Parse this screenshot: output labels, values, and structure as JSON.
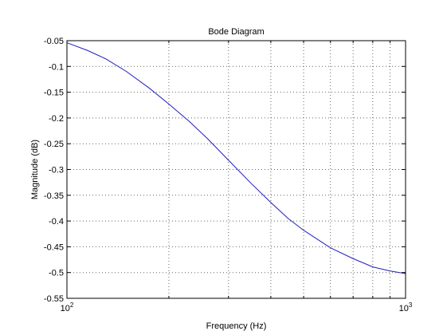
{
  "chart_data": {
    "type": "line",
    "title": "Bode Diagram",
    "xlabel": "Frequency  (Hz)",
    "ylabel": "Magnitude (dB)",
    "xscale": "log",
    "xlim": [
      100,
      1000
    ],
    "ylim": [
      -0.55,
      -0.05
    ],
    "grid": true,
    "x_tick_labels": [
      {
        "value": 100,
        "base": "10",
        "exp": "2"
      },
      {
        "value": 1000,
        "base": "10",
        "exp": "3"
      }
    ],
    "y_tick_labels": [
      {
        "value": -0.05,
        "label": "-0.05"
      },
      {
        "value": -0.1,
        "label": "-0.1"
      },
      {
        "value": -0.15,
        "label": "-0.15"
      },
      {
        "value": -0.2,
        "label": "-0.2"
      },
      {
        "value": -0.25,
        "label": "-0.25"
      },
      {
        "value": -0.3,
        "label": "-0.3"
      },
      {
        "value": -0.35,
        "label": "-0.35"
      },
      {
        "value": -0.4,
        "label": "-0.4"
      },
      {
        "value": -0.45,
        "label": "-0.45"
      },
      {
        "value": -0.5,
        "label": "-0.5"
      },
      {
        "value": -0.55,
        "label": "-0.55"
      }
    ],
    "series": [
      {
        "color": "#1f1fbf",
        "x": [
          100,
          115,
          130,
          150,
          175,
          200,
          230,
          260,
          300,
          350,
          400,
          450,
          500,
          600,
          700,
          800,
          900,
          1000
        ],
        "y": [
          -0.054,
          -0.069,
          -0.085,
          -0.11,
          -0.142,
          -0.173,
          -0.207,
          -0.24,
          -0.282,
          -0.327,
          -0.364,
          -0.395,
          -0.418,
          -0.452,
          -0.473,
          -0.489,
          -0.497,
          -0.502
        ]
      }
    ]
  }
}
